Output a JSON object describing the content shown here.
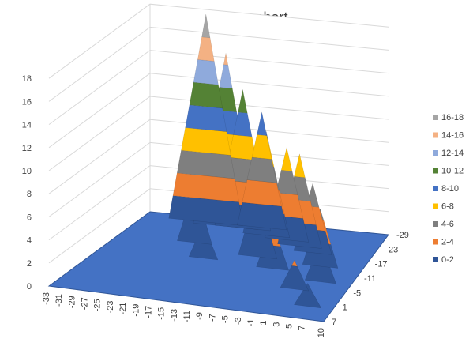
{
  "chart_data": {
    "type": "surface",
    "title": "Frequency chart",
    "zlim": [
      0,
      18
    ],
    "z_ticks": [
      "0",
      "2",
      "4",
      "6",
      "8",
      "10",
      "12",
      "14",
      "16",
      "18"
    ],
    "x_ticks": [
      "-33",
      "-31",
      "-29",
      "-27",
      "-25",
      "-23",
      "-21",
      "-19",
      "-17",
      "-15",
      "-13",
      "-11",
      "-9",
      "-7",
      "-5",
      "-3",
      "-1",
      "1",
      "3",
      "5",
      "7",
      "10"
    ],
    "y_ticks": [
      "-29",
      "-23",
      "-17",
      "-11",
      "-5",
      "1",
      "7"
    ],
    "legend": [
      {
        "label": "16-18",
        "color": "#a5a5a5"
      },
      {
        "label": "14-16",
        "color": "#f4b183"
      },
      {
        "label": "12-14",
        "color": "#8faadc"
      },
      {
        "label": "10-12",
        "color": "#548235"
      },
      {
        "label": "8-10",
        "color": "#4472c4"
      },
      {
        "label": "6-8",
        "color": "#ffc000"
      },
      {
        "label": "4-6",
        "color": "#7f7f7f"
      },
      {
        "label": "2-4",
        "color": "#ed7d31"
      },
      {
        "label": "0-2",
        "color": "#2f5597"
      }
    ],
    "peaks": [
      {
        "x": -22,
        "y": -27,
        "z": 18
      },
      {
        "x": -18,
        "y": -26,
        "z": 15
      },
      {
        "x": -15,
        "y": -26,
        "z": 12
      },
      {
        "x": -12,
        "y": -27,
        "z": 10
      },
      {
        "x": -10,
        "y": -24,
        "z": 9
      },
      {
        "x": -6,
        "y": -23,
        "z": 8
      },
      {
        "x": -3,
        "y": -21,
        "z": 8
      },
      {
        "x": 0,
        "y": -19,
        "z": 6
      },
      {
        "x": 3,
        "y": -14,
        "z": 5
      },
      {
        "x": 5,
        "y": -8,
        "z": 3.5
      },
      {
        "x": -20,
        "y": -18,
        "z": 5
      },
      {
        "x": -16,
        "y": -12,
        "z": 3
      },
      {
        "x": -8,
        "y": -15,
        "z": 6
      },
      {
        "x": -4,
        "y": -11,
        "z": 4
      },
      {
        "x": 2,
        "y": -4,
        "z": 2.5
      },
      {
        "x": 6,
        "y": 2,
        "z": 2
      }
    ]
  }
}
